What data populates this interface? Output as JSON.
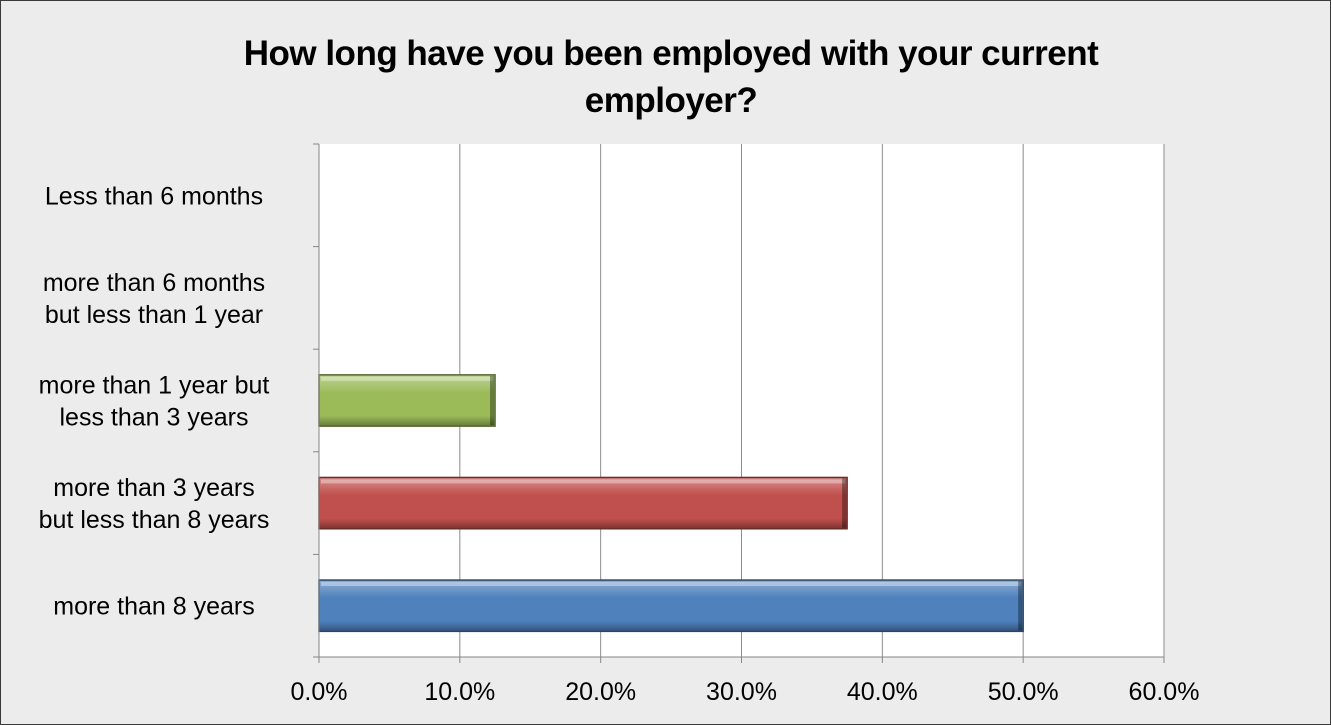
{
  "chart_data": {
    "type": "bar",
    "orientation": "horizontal",
    "title": "How long have you been employed with your current employer?",
    "title_lines": [
      "How long have you been employed with your current",
      "employer?"
    ],
    "categories": [
      "Less than 6 months",
      "more than 6 months but less than 1 year",
      "more than 1 year but less than 3 years",
      "more than 3 years but less than 8 years",
      "more than 8 years"
    ],
    "category_lines": [
      [
        "Less than 6 months"
      ],
      [
        "more than 6 months",
        "but less than 1 year"
      ],
      [
        "more than 1 year but",
        "less than 3 years"
      ],
      [
        "more than 3 years",
        "but less than 8 years"
      ],
      [
        "more than 8 years"
      ]
    ],
    "values": [
      0,
      0,
      12.5,
      37.5,
      50.0
    ],
    "bar_colors": [
      "#4f81bd",
      "#c0504d",
      "#9bbb59",
      "#c0504d",
      "#4f81bd"
    ],
    "xlim": [
      0,
      60
    ],
    "x_ticks": [
      0,
      10,
      20,
      30,
      40,
      50,
      60
    ],
    "x_tick_labels": [
      "0.0%",
      "10.0%",
      "20.0%",
      "30.0%",
      "40.0%",
      "50.0%",
      "60.0%"
    ],
    "xlabel": "",
    "ylabel": "",
    "grid": "vertical",
    "legend": "none"
  },
  "colors": {
    "frame_background": "#ececec",
    "plot_background": "#ffffff",
    "gridline": "#8c8c8c"
  }
}
